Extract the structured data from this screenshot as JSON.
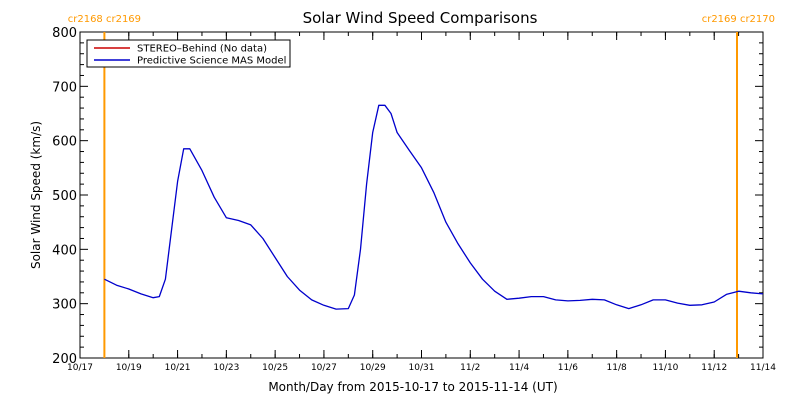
{
  "chart_data": {
    "type": "line",
    "title": "Solar Wind Speed Comparisons",
    "xlabel": "Month/Day from 2015-10-17 to 2015-11-14 (UT)",
    "ylabel": "Solar Wind Speed (km/s)",
    "ylim": [
      200,
      800
    ],
    "yticks": [
      200,
      300,
      400,
      500,
      600,
      700,
      800
    ],
    "xlim": [
      "2015-10-17",
      "2015-11-14"
    ],
    "xticks": [
      {
        "date": "2015-10-17",
        "label": "10/17"
      },
      {
        "date": "2015-10-19",
        "label": "10/19"
      },
      {
        "date": "2015-10-21",
        "label": "10/21"
      },
      {
        "date": "2015-10-23",
        "label": "10/23"
      },
      {
        "date": "2015-10-25",
        "label": "10/25"
      },
      {
        "date": "2015-10-27",
        "label": "10/27"
      },
      {
        "date": "2015-10-29",
        "label": "10/29"
      },
      {
        "date": "2015-10-31",
        "label": "10/31"
      },
      {
        "date": "2015-11-02",
        "label": "11/2"
      },
      {
        "date": "2015-11-04",
        "label": "11/4"
      },
      {
        "date": "2015-11-06",
        "label": "11/6"
      },
      {
        "date": "2015-11-08",
        "label": "11/8"
      },
      {
        "date": "2015-11-10",
        "label": "11/10"
      },
      {
        "date": "2015-11-12",
        "label": "11/12"
      },
      {
        "date": "2015-11-14",
        "label": "11/14"
      }
    ],
    "legend_position": "top-left",
    "legend": [
      {
        "label": "STEREO–Behind (No data)",
        "color": "#cc0000"
      },
      {
        "label": "Predictive Science MAS Model",
        "color": "#0000cc"
      }
    ],
    "markers": [
      {
        "date": "2015-10-18",
        "label": "cr2168 cr2169",
        "align": "start"
      },
      {
        "date": "2015-11-14",
        "label": "cr2169 cr2170",
        "align": "end"
      }
    ],
    "marker_color": "#ff9900",
    "series": [
      {
        "name": "Predictive Science MAS Model",
        "color": "#0000cc",
        "x": [
          "2015-10-18",
          "2015-10-18T12:00",
          "2015-10-19",
          "2015-10-19T12:00",
          "2015-10-20",
          "2015-10-20T06:00",
          "2015-10-20T12:00",
          "2015-10-21",
          "2015-10-21T06:00",
          "2015-10-21T12:00",
          "2015-10-22",
          "2015-10-22T12:00",
          "2015-10-23",
          "2015-10-23T12:00",
          "2015-10-24",
          "2015-10-24T12:00",
          "2015-10-25",
          "2015-10-25T12:00",
          "2015-10-26",
          "2015-10-26T12:00",
          "2015-10-27",
          "2015-10-27T12:00",
          "2015-10-28",
          "2015-10-28T06:00",
          "2015-10-28T12:00",
          "2015-10-28T18:00",
          "2015-10-29",
          "2015-10-29T06:00",
          "2015-10-29T12:00",
          "2015-10-29T18:00",
          "2015-10-30",
          "2015-10-30T12:00",
          "2015-10-31",
          "2015-10-31T12:00",
          "2015-11-01",
          "2015-11-01T12:00",
          "2015-11-02",
          "2015-11-02T12:00",
          "2015-11-03",
          "2015-11-03T12:00",
          "2015-11-04",
          "2015-11-04T12:00",
          "2015-11-05",
          "2015-11-05T12:00",
          "2015-11-06",
          "2015-11-06T12:00",
          "2015-11-07",
          "2015-11-07T12:00",
          "2015-11-08",
          "2015-11-08T12:00",
          "2015-11-09",
          "2015-11-09T12:00",
          "2015-11-10",
          "2015-11-10T12:00",
          "2015-11-11",
          "2015-11-11T12:00",
          "2015-11-12",
          "2015-11-12T12:00",
          "2015-11-13",
          "2015-11-13T12:00",
          "2015-11-14"
        ],
        "values": [
          345,
          334,
          327,
          318,
          311,
          313,
          345,
          525,
          585,
          585,
          545,
          496,
          458,
          453,
          445,
          420,
          385,
          350,
          325,
          307,
          297,
          290,
          291,
          316,
          400,
          520,
          615,
          665,
          665,
          650,
          615,
          582,
          550,
          505,
          450,
          410,
          375,
          345,
          323,
          308,
          310,
          313,
          313,
          307,
          305,
          306,
          308,
          307,
          298,
          291,
          298,
          307,
          307,
          301,
          297,
          298,
          303,
          317,
          323,
          320,
          318
        ]
      }
    ]
  }
}
